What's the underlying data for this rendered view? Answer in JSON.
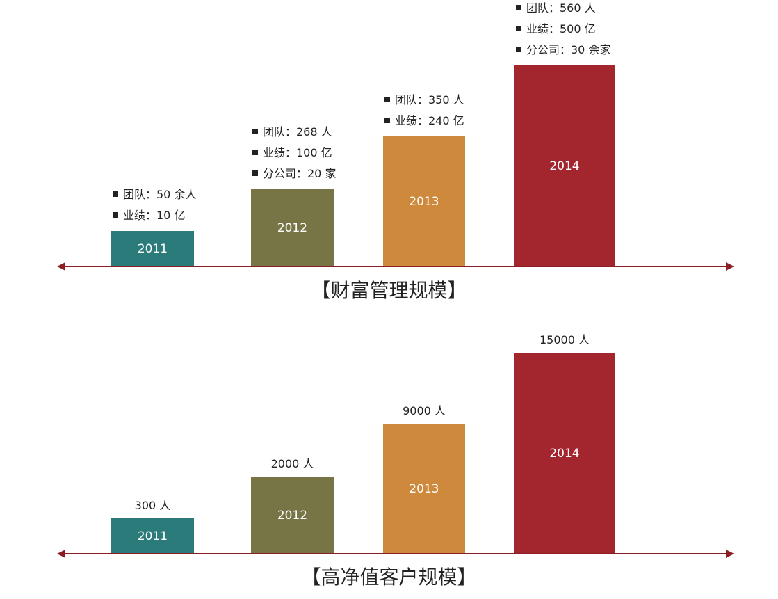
{
  "colors": {
    "bar_2011": "#2a7b7a",
    "bar_2012": "#777545",
    "bar_2013": "#cf893c",
    "bar_2014": "#a3252e",
    "axis": "#8b1e24"
  },
  "chart_data": [
    {
      "type": "bar",
      "title": "【财富管理规模】",
      "categories": [
        "2011",
        "2012",
        "2013",
        "2014"
      ],
      "values": [
        10,
        100,
        240,
        500
      ],
      "annotations": [
        [
          "团队：50 余人",
          "业绩：10 亿"
        ],
        [
          "团队：268 人",
          "业绩：100 亿",
          "分公司：20 家"
        ],
        [
          "团队：350 人",
          "业绩：240 亿"
        ],
        [
          "团队：560 人",
          "业绩：500 亿",
          "分公司：30 余家"
        ]
      ],
      "legend": "none",
      "grid": false
    },
    {
      "type": "bar",
      "title": "【高净值客户规模】",
      "categories": [
        "2011",
        "2012",
        "2013",
        "2014"
      ],
      "values": [
        300,
        2000,
        9000,
        15000
      ],
      "value_labels": [
        "300 人",
        "2000 人",
        "9000 人",
        "15000 人"
      ],
      "legend": "none",
      "grid": false
    }
  ]
}
